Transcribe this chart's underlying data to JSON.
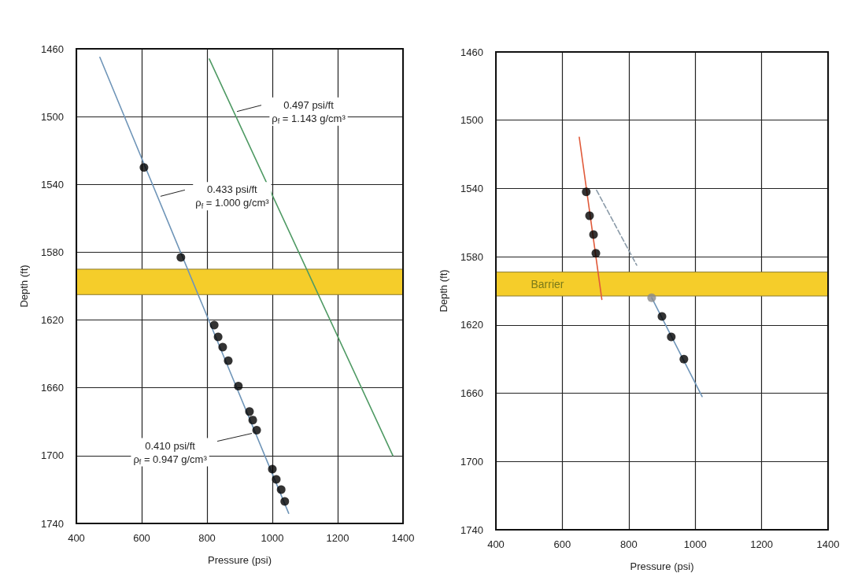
{
  "chart_data": [
    {
      "type": "line",
      "xlabel": "Pressure (psi)",
      "ylabel": "Depth (ft)",
      "xlim": [
        400,
        1400
      ],
      "xticks": [
        400,
        600,
        800,
        1000,
        1200,
        1400
      ],
      "ylim": [
        1740,
        1460
      ],
      "yticks": [
        1460,
        1500,
        1540,
        1580,
        1620,
        1660,
        1700,
        1740
      ],
      "grid": true,
      "marker": "none",
      "series": [
        {
          "color": "#6f95b8",
          "x": [
            472,
            1050
          ],
          "values": [
            1465,
            1734
          ]
        },
        {
          "color": "#4f9a64",
          "x": [
            807,
            1369
          ],
          "values": [
            1466,
            1700
          ]
        },
        {
          "type": "scatter",
          "marker": "circle",
          "color": "#000000",
          "x": [
            607,
            720,
            822,
            834,
            848,
            865,
            896,
            930,
            940,
            952,
            1000,
            1012,
            1027,
            1038
          ],
          "values": [
            1530,
            1583,
            1623,
            1630,
            1636,
            1644,
            1659,
            1674,
            1679,
            1685,
            1708,
            1714,
            1720,
            1727
          ]
        }
      ],
      "bands": [
        {
          "axis": "y",
          "from": 1590,
          "to": 1605,
          "color": "#f5cd2a",
          "label": null
        }
      ],
      "annotations": [
        {
          "text": "0.497 psi/ft\nρ$_{f}$ = 1.143 g/cm³",
          "x": 882,
          "y": 1497
        },
        {
          "text": "0.433 psi/ft\nρ$_{f}$ = 1.000 g/cm³",
          "x": 648,
          "y": 1547
        },
        {
          "text": "0.410 psi/ft\nρ$_{f}$ = 0.947 g/cm³",
          "x": 952,
          "y": 1685
        }
      ]
    },
    {
      "type": "line",
      "xlabel": "Pressure (psi)",
      "ylabel": "Depth (ft)",
      "xlim": [
        400,
        1400
      ],
      "xticks": [
        400,
        600,
        800,
        1000,
        1200,
        1400
      ],
      "ylim": [
        1740,
        1460
      ],
      "yticks": [
        1460,
        1500,
        1540,
        1580,
        1620,
        1660,
        1700,
        1740
      ],
      "grid": true,
      "marker": "none",
      "series": [
        {
          "color": "#e05a3a",
          "x": [
            651,
            719
          ],
          "values": [
            1510,
            1605
          ]
        },
        {
          "color": "#6f95b8",
          "x": [
            869,
            1021
          ],
          "values": [
            1604,
            1662
          ]
        },
        {
          "color": "#8a9aa8",
          "line_style": "dashed",
          "x": [
            703,
            824
          ],
          "values": [
            1541,
            1585
          ]
        },
        {
          "type": "scatter",
          "marker": "circle",
          "color": "#000000",
          "x": [
            672,
            682,
            694,
            701,
            900,
            928,
            966
          ],
          "values": [
            1542,
            1556,
            1567,
            1578,
            1615,
            1627,
            1640
          ]
        },
        {
          "type": "scatter",
          "marker": "circle",
          "color": "#8a8a8a",
          "x": [
            869
          ],
          "values": [
            1604
          ]
        }
      ],
      "bands": [
        {
          "axis": "y",
          "from": 1589,
          "to": 1603,
          "color": "#f5cd2a",
          "label": "Barrier"
        }
      ]
    }
  ]
}
